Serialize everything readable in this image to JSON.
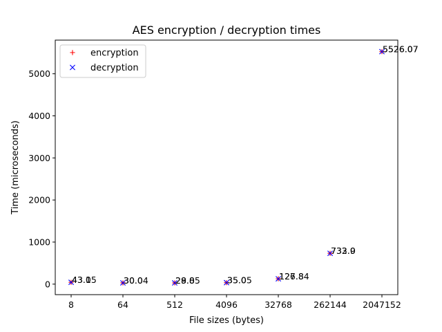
{
  "chart_data": {
    "type": "scatter",
    "title": "AES encryption / decryption times",
    "xlabel": "File sizes (bytes)",
    "ylabel": "Time (microseconds)",
    "categories": [
      "8",
      "64",
      "512",
      "4096",
      "32768",
      "262144",
      "2047152"
    ],
    "series": [
      {
        "name": "encryption",
        "marker": "+",
        "color": "#ff0000",
        "values": [
          43.0,
          30.0,
          29.0,
          35.0,
          127.8,
          732.9,
          5526.07
        ],
        "labels": [
          "43.0",
          "30.0",
          "29.0",
          "35.0",
          "127.8",
          "732.9",
          "5526.07"
        ]
      },
      {
        "name": "decryption",
        "marker": "x",
        "color": "#0000ff",
        "values": [
          43.15,
          30.04,
          28.85,
          35.05,
          126.84,
          733.0,
          5526.07
        ],
        "labels": [
          "43.15",
          "30.04",
          "28.85",
          "35.05",
          "126.84",
          "733.0",
          "5526.07"
        ]
      }
    ],
    "yticks": [
      0,
      1000,
      2000,
      3000,
      4000,
      5000
    ],
    "ylim": [
      -250,
      5800
    ],
    "legend": "top-left",
    "grid": false
  }
}
